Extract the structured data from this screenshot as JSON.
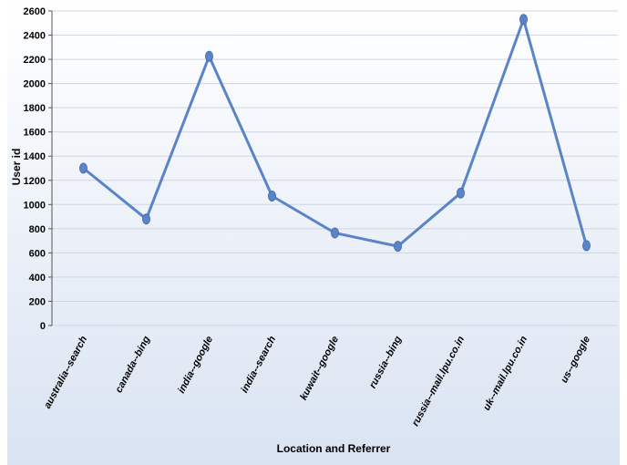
{
  "chart_data": {
    "type": "line",
    "title": "",
    "xlabel": "Location and Referrer",
    "ylabel": "User id",
    "ylim": [
      0,
      2600
    ],
    "yticks": [
      0,
      200,
      400,
      600,
      800,
      1000,
      1200,
      1400,
      1600,
      1800,
      2000,
      2200,
      2400,
      2600
    ],
    "categories": [
      "australia--search",
      "canada--bing",
      "india--google",
      "india--search",
      "kuwait--google",
      "russia--bing",
      "russia--mail.lpu.co.in",
      "uk--mail.lpu.co.in",
      "us--google"
    ],
    "series": [
      {
        "values": [
          1300,
          880,
          2225,
          1070,
          765,
          655,
          1095,
          2530,
          660
        ]
      }
    ],
    "grid": true,
    "legend": "none",
    "colors": {
      "line": "#5b84c8",
      "marker": "#5b84c8",
      "grid": "#cfd6e2",
      "background_top": "#ffffff",
      "background_bottom": "#d9e3f2"
    }
  }
}
